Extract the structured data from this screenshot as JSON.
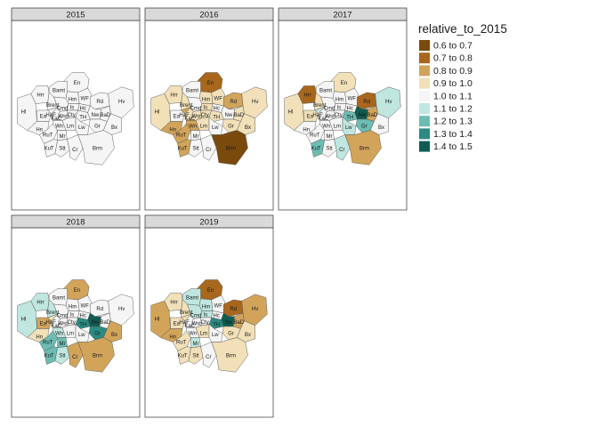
{
  "chart_data": {
    "type": "choropleth-facets",
    "legend": {
      "title": "relative_to_2015",
      "bins": [
        {
          "label": "0.6 to 0.7",
          "color": "#7a4a0d"
        },
        {
          "label": "0.7 to 0.8",
          "color": "#a8671c"
        },
        {
          "label": "0.8 to 0.9",
          "color": "#d2a45a"
        },
        {
          "label": "0.9 to 1.0",
          "color": "#f1e0b8"
        },
        {
          "label": "1.0 to 1.1",
          "color": "#f5f5f5"
        },
        {
          "label": "1.1 to 1.2",
          "color": "#bfe6df"
        },
        {
          "label": "1.2 to 1.3",
          "color": "#6cbcb2"
        },
        {
          "label": "1.3 to 1.4",
          "color": "#2b8b82"
        },
        {
          "label": "1.4 to 1.5",
          "color": "#0f5c52"
        }
      ]
    },
    "boroughs": [
      "En",
      "Bamt",
      "Hrr",
      "Hm",
      "WF",
      "Rd",
      "Hv",
      "Hl",
      "Brent",
      "Cmd",
      "Is",
      "Hc",
      "TH",
      "Nw",
      "BaD",
      "Ea",
      "KaC",
      "Wst",
      "Cty",
      "HaF",
      "Gr",
      "Bx",
      "Hn",
      "RuT",
      "Wn",
      "Lm",
      "Lw",
      "Mr",
      "KuT",
      "Stt",
      "Cr",
      "Brm"
    ],
    "panels": [
      {
        "year": "2015",
        "bins": {
          "En": 4,
          "Bamt": 4,
          "Hrr": 4,
          "Hm": 4,
          "WF": 4,
          "Rd": 4,
          "Hv": 4,
          "Hl": 4,
          "Brent": 4,
          "Cmd": 4,
          "Is": 4,
          "Hc": 4,
          "TH": 4,
          "Nw": 4,
          "BaD": 4,
          "Ea": 4,
          "KaC": 4,
          "Wst": 4,
          "Cty": 4,
          "HaF": 4,
          "Gr": 4,
          "Bx": 4,
          "Hn": 4,
          "RuT": 4,
          "Wn": 4,
          "Lm": 4,
          "Lw": 4,
          "Mr": 4,
          "KuT": 4,
          "Stt": 4,
          "Cr": 4,
          "Brm": 4
        }
      },
      {
        "year": "2016",
        "bins": {
          "En": 1,
          "Bamt": 4,
          "Hrr": 3,
          "Hm": 3,
          "WF": 3,
          "Rd": 2,
          "Hv": 3,
          "Hl": 3,
          "Brent": 3,
          "Cmd": 4,
          "Is": 3,
          "Hc": 4,
          "TH": 3,
          "Nw": 4,
          "BaD": 3,
          "Ea": 4,
          "KaC": 3,
          "Wst": 3,
          "Cty": 3,
          "HaF": 2,
          "Gr": 3,
          "Bx": 3,
          "Hn": 2,
          "RuT": 2,
          "Wn": 2,
          "Lm": 3,
          "Lw": 4,
          "Mr": 4,
          "KuT": 2,
          "Stt": 4,
          "Cr": 4,
          "Brm": 0
        }
      },
      {
        "year": "2017",
        "bins": {
          "En": 3,
          "Bamt": 4,
          "Hrr": 1,
          "Hm": 4,
          "WF": 4,
          "Rd": 1,
          "Hv": 5,
          "Hl": 3,
          "Brent": 3,
          "Cmd": 4,
          "Is": 4,
          "Hc": 4,
          "TH": 6,
          "Nw": 8,
          "BaD": 2,
          "Ea": 3,
          "KaC": 4,
          "Wst": 4,
          "Cty": 4,
          "HaF": 5,
          "Gr": 6,
          "Bx": 4,
          "Hn": 4,
          "RuT": 4,
          "Wn": 4,
          "Lm": 4,
          "Lw": 5,
          "Mr": 4,
          "KuT": 6,
          "Stt": 4,
          "Cr": 5,
          "Brm": 2
        }
      },
      {
        "year": "2018",
        "bins": {
          "En": 2,
          "Bamt": 4,
          "Hrr": 5,
          "Hm": 4,
          "WF": 4,
          "Rd": 4,
          "Hv": 4,
          "Hl": 5,
          "Brent": 5,
          "Cmd": 4,
          "Is": 4,
          "Hc": 4,
          "TH": 7,
          "Nw": 8,
          "BaD": 4,
          "Ea": 2,
          "KaC": 4,
          "Wst": 4,
          "Cty": 4,
          "HaF": 3,
          "Gr": 7,
          "Bx": 2,
          "Hn": 3,
          "RuT": 6,
          "Wn": 5,
          "Lm": 4,
          "Lw": 4,
          "Mr": 6,
          "KuT": 6,
          "Stt": 5,
          "Cr": 2,
          "Brm": 2
        }
      },
      {
        "year": "2019",
        "bins": {
          "En": 1,
          "Bamt": 5,
          "Hrr": 3,
          "Hm": 5,
          "WF": 4,
          "Rd": 1,
          "Hv": 2,
          "Hl": 2,
          "Brent": 3,
          "Cmd": 5,
          "Is": 5,
          "Hc": 4,
          "TH": 7,
          "Nw": 8,
          "BaD": 2,
          "Ea": 3,
          "KaC": 4,
          "Wst": 4,
          "Cty": 4,
          "HaF": 3,
          "Gr": 3,
          "Bx": 3,
          "Hn": 2,
          "RuT": 3,
          "Wn": 4,
          "Lm": 3,
          "Lw": 4,
          "Mr": 5,
          "KuT": 3,
          "Stt": 3,
          "Cr": 4,
          "Brm": 3
        }
      }
    ]
  }
}
